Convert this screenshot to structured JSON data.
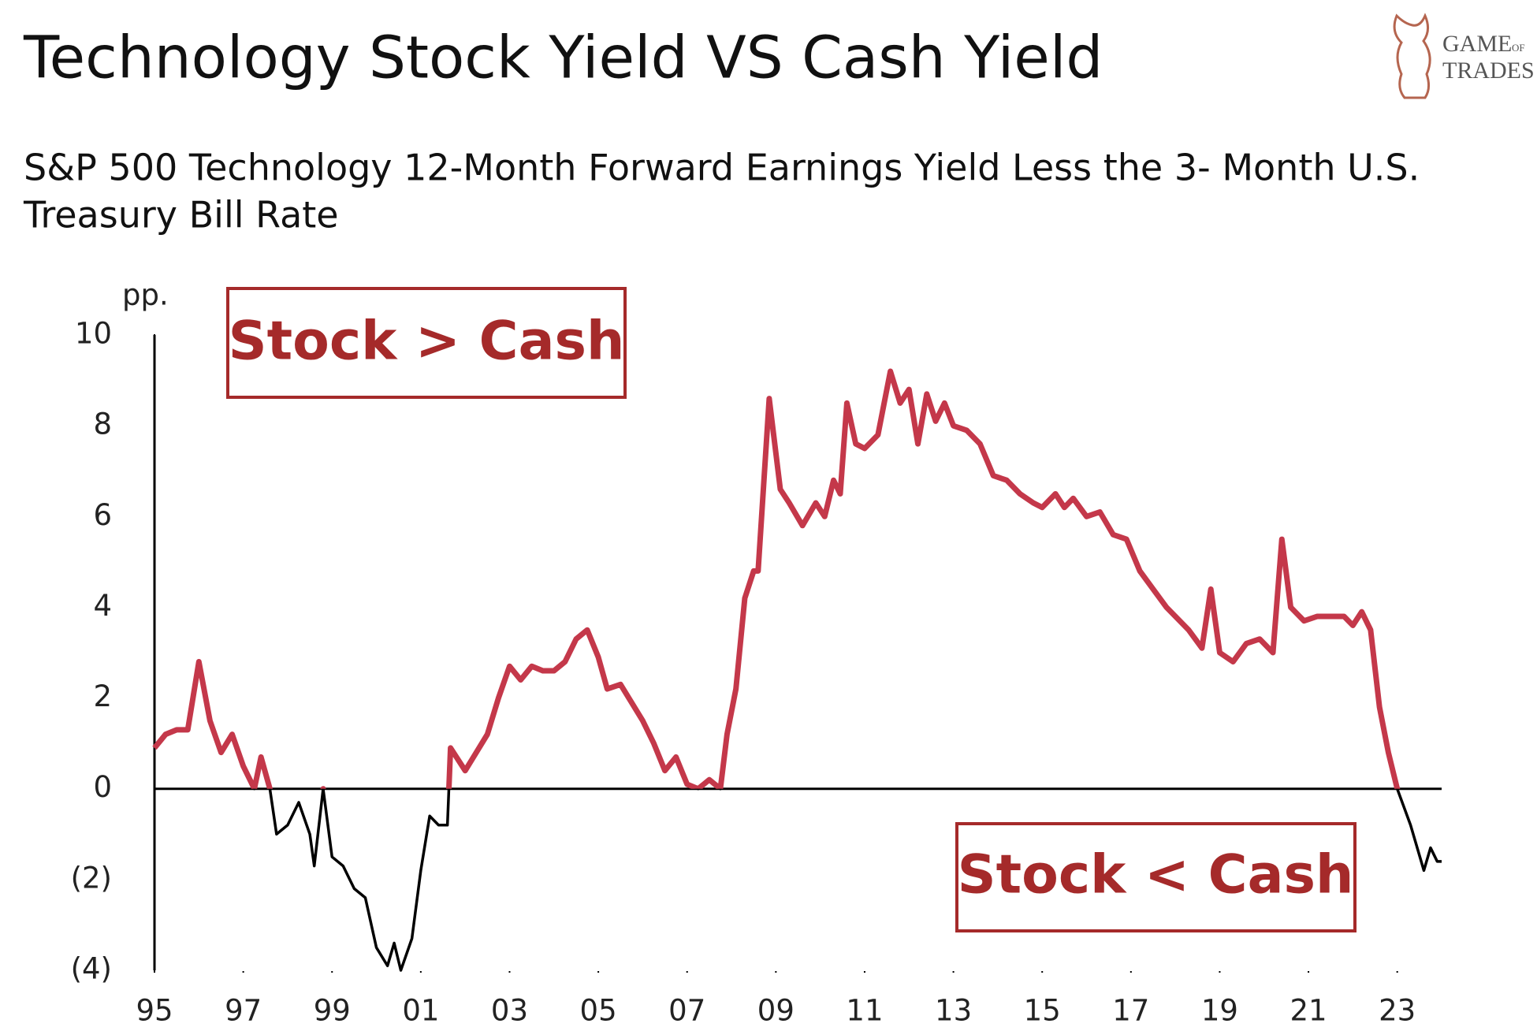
{
  "chart_data": {
    "type": "line",
    "title": "Technology Stock Yield VS Cash Yield",
    "subtitle": [
      "S&P 500 Technology 12-Month Forward Earnings Yield Less the 3- Month U.S.",
      "Treasury Bill Rate"
    ],
    "y_unit": "pp.",
    "annotations": [
      "Stock > Cash",
      "Stock < Cash"
    ],
    "logo": [
      "GAME",
      "OF",
      "TRADES"
    ],
    "color": "#c4384a",
    "negative_color": "#000000",
    "x": [
      1995.0,
      1995.25,
      1995.5,
      1995.75,
      1996.0,
      1996.25,
      1996.5,
      1996.75,
      1997.0,
      1997.25,
      1997.4,
      1997.6,
      1997.75,
      1998.0,
      1998.25,
      1998.5,
      1998.6,
      1998.8,
      1999.0,
      1999.25,
      1999.5,
      1999.75,
      2000.0,
      2000.25,
      2000.4,
      2000.55,
      2000.8,
      2001.0,
      2001.2,
      2001.4,
      2001.6,
      2001.67,
      2002.0,
      2002.25,
      2002.5,
      2002.75,
      2003.0,
      2003.25,
      2003.5,
      2003.75,
      2004.0,
      2004.25,
      2004.5,
      2004.75,
      2005.0,
      2005.2,
      2005.5,
      2005.75,
      2006.0,
      2006.25,
      2006.5,
      2006.75,
      2007.0,
      2007.25,
      2007.5,
      2007.75,
      2007.9,
      2008.1,
      2008.3,
      2008.5,
      2008.6,
      2008.85,
      2009.1,
      2009.3,
      2009.6,
      2009.9,
      2010.1,
      2010.3,
      2010.45,
      2010.6,
      2010.8,
      2011.0,
      2011.3,
      2011.58,
      2011.8,
      2012.0,
      2012.2,
      2012.4,
      2012.6,
      2012.8,
      2013.0,
      2013.3,
      2013.6,
      2013.9,
      2014.2,
      2014.5,
      2014.8,
      2015.0,
      2015.3,
      2015.5,
      2015.7,
      2016.0,
      2016.3,
      2016.6,
      2016.9,
      2017.2,
      2017.5,
      2017.8,
      2018.0,
      2018.3,
      2018.6,
      2018.8,
      2019.0,
      2019.3,
      2019.6,
      2019.9,
      2020.2,
      2020.4,
      2020.6,
      2020.9,
      2021.2,
      2021.5,
      2021.8,
      2022.0,
      2022.2,
      2022.4,
      2022.6,
      2022.8,
      2023.0,
      2023.3,
      2023.6,
      2023.75,
      2023.9,
      2024.0
    ],
    "values": [
      0.9,
      1.2,
      1.3,
      1.3,
      2.8,
      1.5,
      0.8,
      1.2,
      0.5,
      0.0,
      0.7,
      0.0,
      -1.0,
      -0.8,
      -0.3,
      -1.0,
      -1.7,
      0.0,
      -1.5,
      -1.7,
      -2.2,
      -2.4,
      -3.5,
      -3.9,
      -3.4,
      -4.0,
      -3.3,
      -1.8,
      -0.6,
      -0.8,
      -0.8,
      0.9,
      0.4,
      0.8,
      1.2,
      2.0,
      2.7,
      2.4,
      2.7,
      2.6,
      2.6,
      2.8,
      3.3,
      3.5,
      2.9,
      2.2,
      2.3,
      1.9,
      1.5,
      1.0,
      0.4,
      0.7,
      0.1,
      0.0,
      0.2,
      0.0,
      1.2,
      2.2,
      4.2,
      4.8,
      4.8,
      8.6,
      6.6,
      6.3,
      5.8,
      6.3,
      6.0,
      6.8,
      6.5,
      8.5,
      7.6,
      7.5,
      7.8,
      9.2,
      8.5,
      8.8,
      7.6,
      8.7,
      8.1,
      8.5,
      8.0,
      7.9,
      7.6,
      6.9,
      6.8,
      6.5,
      6.3,
      6.2,
      6.5,
      6.2,
      6.4,
      6.0,
      6.1,
      5.6,
      5.5,
      4.8,
      4.4,
      4.0,
      3.8,
      3.5,
      3.1,
      4.4,
      3.0,
      2.8,
      3.2,
      3.3,
      3.0,
      5.5,
      4.0,
      3.7,
      3.8,
      3.8,
      3.8,
      3.6,
      3.9,
      3.5,
      1.8,
      0.8,
      0.0,
      -0.8,
      -1.8,
      -1.3,
      -1.6,
      -1.6
    ],
    "xlim": [
      1995,
      2024
    ],
    "xticks": [
      {
        "value": 1995,
        "label": "95"
      },
      {
        "value": 1997,
        "label": "97"
      },
      {
        "value": 1999,
        "label": "99"
      },
      {
        "value": 2001,
        "label": "01"
      },
      {
        "value": 2003,
        "label": "03"
      },
      {
        "value": 2005,
        "label": "05"
      },
      {
        "value": 2007,
        "label": "07"
      },
      {
        "value": 2009,
        "label": "09"
      },
      {
        "value": 2011,
        "label": "11"
      },
      {
        "value": 2013,
        "label": "13"
      },
      {
        "value": 2015,
        "label": "15"
      },
      {
        "value": 2017,
        "label": "17"
      },
      {
        "value": 2019,
        "label": "19"
      },
      {
        "value": 2021,
        "label": "21"
      },
      {
        "value": 2023,
        "label": "23"
      }
    ],
    "ylim": [
      -4,
      10
    ],
    "yticks": [
      {
        "value": -4,
        "label": "(4)"
      },
      {
        "value": -2,
        "label": "(2)"
      },
      0,
      2,
      4,
      6,
      8,
      10
    ],
    "grid": false
  }
}
